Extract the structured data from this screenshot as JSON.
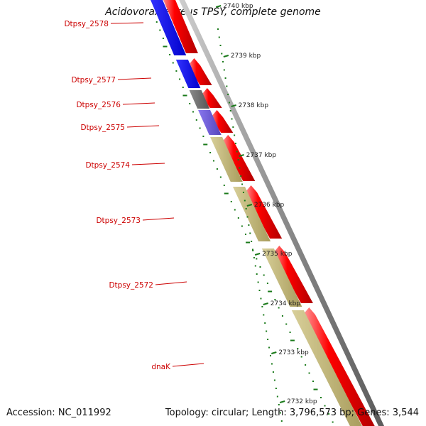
{
  "title": "Acidovorax ebreus TPSY, complete genome",
  "accession_text": "Accession: NC_011992",
  "summary_text": "Topology: circular; Length: 3,796,573 bp; Genes: 3,544",
  "colors": {
    "forward_gene": "#ff0000",
    "blue_gene": "#0000ff",
    "grey_gene": "#707070",
    "slate_gene": "#7766dd",
    "khaki_gene": "#c4b879",
    "backbone": "#8c8c8c",
    "ruler": "#1a7a1a",
    "gene_label": "#cc0000"
  },
  "ruler_labels": [
    "2740 kbp",
    "2739 kbp",
    "2738 kbp",
    "2737 kbp",
    "2736 kbp",
    "2735 kbp",
    "2734 kbp",
    "2733 kbp",
    "2732 kbp"
  ],
  "gene_labels": [
    "Dtpsy_2578",
    "Dtpsy_2577",
    "Dtpsy_2576",
    "Dtpsy_2575",
    "Dtpsy_2574",
    "Dtpsy_2573",
    "Dtpsy_2572",
    "dnaK"
  ]
}
